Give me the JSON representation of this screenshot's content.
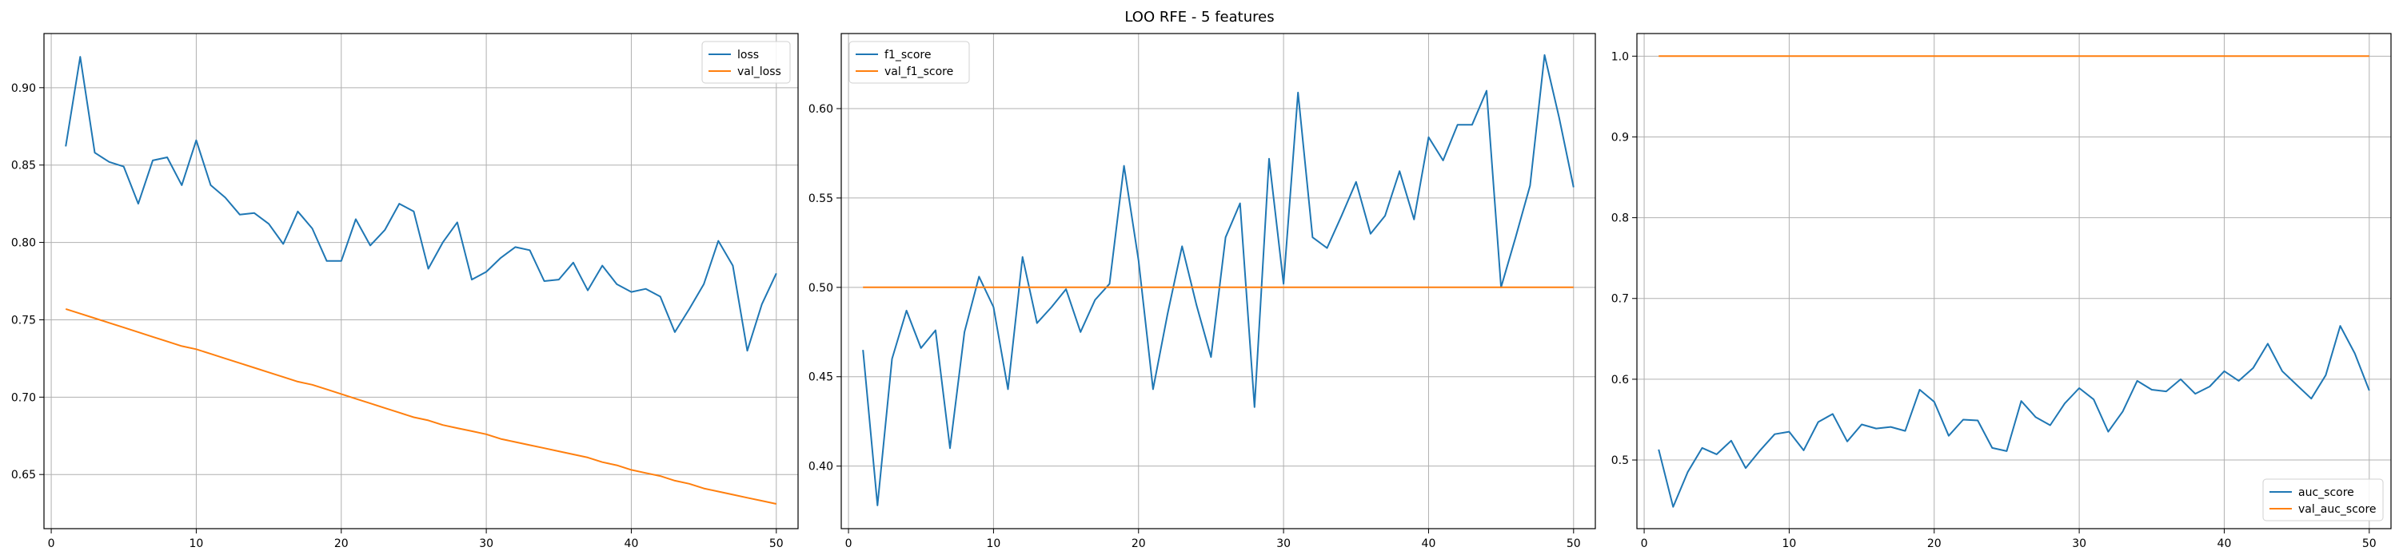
{
  "figure": {
    "title": "LOO RFE - 5 features"
  },
  "colors": {
    "blue": "#1f77b4",
    "orange": "#ff7f0e",
    "grid": "#b0b0b0"
  },
  "chart_data": [
    {
      "type": "line",
      "x": [
        1,
        2,
        3,
        4,
        5,
        6,
        7,
        8,
        9,
        10,
        11,
        12,
        13,
        14,
        15,
        16,
        17,
        18,
        19,
        20,
        21,
        22,
        23,
        24,
        25,
        26,
        27,
        28,
        29,
        30,
        31,
        32,
        33,
        34,
        35,
        36,
        37,
        38,
        39,
        40,
        41,
        42,
        43,
        44,
        45,
        46,
        47,
        48,
        49,
        50
      ],
      "series": [
        {
          "name": "loss",
          "color": "#1f77b4",
          "values": [
            0.862,
            0.92,
            0.858,
            0.852,
            0.849,
            0.825,
            0.853,
            0.855,
            0.837,
            0.866,
            0.837,
            0.829,
            0.818,
            0.819,
            0.812,
            0.799,
            0.82,
            0.809,
            0.788,
            0.788,
            0.815,
            0.798,
            0.808,
            0.825,
            0.82,
            0.783,
            0.8,
            0.813,
            0.776,
            0.781,
            0.79,
            0.797,
            0.795,
            0.775,
            0.776,
            0.787,
            0.769,
            0.785,
            0.773,
            0.768,
            0.77,
            0.765,
            0.742,
            0.757,
            0.773,
            0.801,
            0.785,
            0.73,
            0.76,
            0.78
          ]
        },
        {
          "name": "val_loss",
          "color": "#ff7f0e",
          "values": [
            0.757,
            0.754,
            0.751,
            0.748,
            0.745,
            0.742,
            0.739,
            0.736,
            0.733,
            0.731,
            0.728,
            0.725,
            0.722,
            0.719,
            0.716,
            0.713,
            0.71,
            0.708,
            0.705,
            0.702,
            0.699,
            0.696,
            0.693,
            0.69,
            0.687,
            0.685,
            0.682,
            0.68,
            0.678,
            0.676,
            0.673,
            0.671,
            0.669,
            0.667,
            0.665,
            0.663,
            0.661,
            0.658,
            0.656,
            0.653,
            0.651,
            0.649,
            0.646,
            0.644,
            0.641,
            0.639,
            0.637,
            0.635,
            0.633,
            0.631
          ]
        }
      ],
      "xlim": [
        -0.5,
        51.5
      ],
      "ylim": [
        0.615,
        0.935
      ],
      "xticks": [
        0,
        10,
        20,
        30,
        40,
        50
      ],
      "yticks": [
        0.65,
        0.7,
        0.75,
        0.8,
        0.85,
        0.9
      ],
      "ytick_labels": [
        "0.65",
        "0.70",
        "0.75",
        "0.80",
        "0.85",
        "0.90"
      ],
      "grid": true,
      "legend": "upper right"
    },
    {
      "type": "line",
      "x": [
        1,
        2,
        3,
        4,
        5,
        6,
        7,
        8,
        9,
        10,
        11,
        12,
        13,
        14,
        15,
        16,
        17,
        18,
        19,
        20,
        21,
        22,
        23,
        24,
        25,
        26,
        27,
        28,
        29,
        30,
        31,
        32,
        33,
        34,
        35,
        36,
        37,
        38,
        39,
        40,
        41,
        42,
        43,
        44,
        45,
        46,
        47,
        48,
        49,
        50
      ],
      "series": [
        {
          "name": "f1_score",
          "color": "#1f77b4",
          "values": [
            0.465,
            0.378,
            0.46,
            0.487,
            0.466,
            0.476,
            0.41,
            0.475,
            0.506,
            0.489,
            0.443,
            0.517,
            0.48,
            0.489,
            0.499,
            0.475,
            0.493,
            0.502,
            0.568,
            0.515,
            0.443,
            0.485,
            0.523,
            0.49,
            0.461,
            0.528,
            0.547,
            0.433,
            0.572,
            0.502,
            0.609,
            0.528,
            0.522,
            0.54,
            0.559,
            0.53,
            0.54,
            0.565,
            0.538,
            0.584,
            0.571,
            0.591,
            0.591,
            0.61,
            0.5,
            0.528,
            0.557,
            0.63,
            0.595,
            0.556
          ]
        },
        {
          "name": "val_f1_score",
          "color": "#ff7f0e",
          "values": [
            0.5,
            0.5,
            0.5,
            0.5,
            0.5,
            0.5,
            0.5,
            0.5,
            0.5,
            0.5,
            0.5,
            0.5,
            0.5,
            0.5,
            0.5,
            0.5,
            0.5,
            0.5,
            0.5,
            0.5,
            0.5,
            0.5,
            0.5,
            0.5,
            0.5,
            0.5,
            0.5,
            0.5,
            0.5,
            0.5,
            0.5,
            0.5,
            0.5,
            0.5,
            0.5,
            0.5,
            0.5,
            0.5,
            0.5,
            0.5,
            0.5,
            0.5,
            0.5,
            0.5,
            0.5,
            0.5,
            0.5,
            0.5,
            0.5,
            0.5
          ]
        }
      ],
      "xlim": [
        -0.5,
        51.5
      ],
      "ylim": [
        0.365,
        0.642
      ],
      "xticks": [
        0,
        10,
        20,
        30,
        40,
        50
      ],
      "yticks": [
        0.4,
        0.45,
        0.5,
        0.55,
        0.6
      ],
      "ytick_labels": [
        "0.40",
        "0.45",
        "0.50",
        "0.55",
        "0.60"
      ],
      "grid": true,
      "legend": "upper left"
    },
    {
      "type": "line",
      "x": [
        1,
        2,
        3,
        4,
        5,
        6,
        7,
        8,
        9,
        10,
        11,
        12,
        13,
        14,
        15,
        16,
        17,
        18,
        19,
        20,
        21,
        22,
        23,
        24,
        25,
        26,
        27,
        28,
        29,
        30,
        31,
        32,
        33,
        34,
        35,
        36,
        37,
        38,
        39,
        40,
        41,
        42,
        43,
        44,
        45,
        46,
        47,
        48,
        49,
        50
      ],
      "series": [
        {
          "name": "auc_score",
          "color": "#1f77b4",
          "values": [
            0.513,
            0.442,
            0.485,
            0.515,
            0.507,
            0.524,
            0.49,
            0.512,
            0.532,
            0.535,
            0.512,
            0.547,
            0.557,
            0.523,
            0.544,
            0.539,
            0.541,
            0.536,
            0.587,
            0.572,
            0.53,
            0.55,
            0.549,
            0.515,
            0.511,
            0.573,
            0.553,
            0.543,
            0.57,
            0.589,
            0.575,
            0.535,
            0.56,
            0.598,
            0.587,
            0.585,
            0.6,
            0.582,
            0.591,
            0.61,
            0.598,
            0.614,
            0.644,
            0.61,
            0.593,
            0.576,
            0.605,
            0.666,
            0.632,
            0.586
          ]
        },
        {
          "name": "val_auc_score",
          "color": "#ff7f0e",
          "values": [
            1.0,
            1.0,
            1.0,
            1.0,
            1.0,
            1.0,
            1.0,
            1.0,
            1.0,
            1.0,
            1.0,
            1.0,
            1.0,
            1.0,
            1.0,
            1.0,
            1.0,
            1.0,
            1.0,
            1.0,
            1.0,
            1.0,
            1.0,
            1.0,
            1.0,
            1.0,
            1.0,
            1.0,
            1.0,
            1.0,
            1.0,
            1.0,
            1.0,
            1.0,
            1.0,
            1.0,
            1.0,
            1.0,
            1.0,
            1.0,
            1.0,
            1.0,
            1.0,
            1.0,
            1.0,
            1.0,
            1.0,
            1.0,
            1.0,
            1.0
          ]
        }
      ],
      "xlim": [
        -0.5,
        51.5
      ],
      "ylim": [
        0.415,
        1.028
      ],
      "xticks": [
        0,
        10,
        20,
        30,
        40,
        50
      ],
      "yticks": [
        0.5,
        0.6,
        0.7,
        0.8,
        0.9,
        1.0
      ],
      "ytick_labels": [
        "0.5",
        "0.6",
        "0.7",
        "0.8",
        "0.9",
        "1.0"
      ],
      "grid": true,
      "legend": "lower right"
    }
  ]
}
